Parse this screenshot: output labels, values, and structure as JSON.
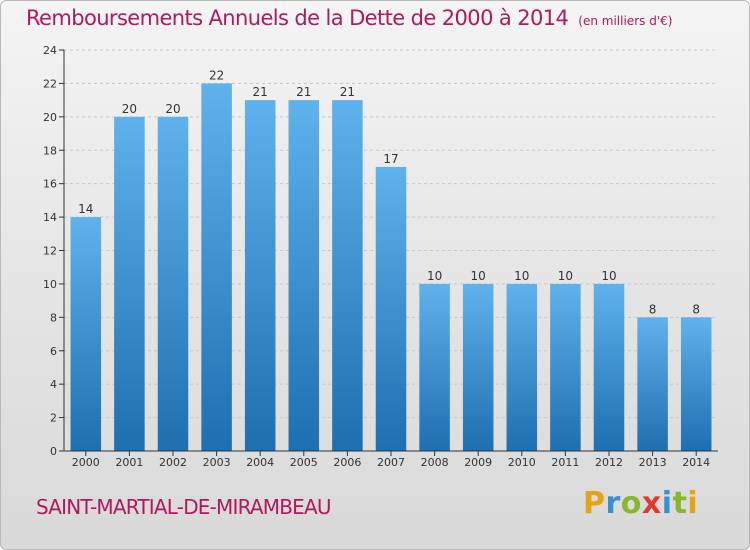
{
  "title": "Remboursements Annuels de la Dette de 2000 à 2014",
  "subtitle": "(en milliers d'€)",
  "commune": "SAINT-MARTIAL-DE-MIRAMBEAU",
  "logo": {
    "letters": [
      "P",
      "r",
      "o",
      "x",
      "i",
      "t",
      "i"
    ],
    "colors": [
      "#e6a415",
      "#3a8fd0",
      "#88b62c",
      "#e03a2f",
      "#3a8fd0",
      "#88b62c",
      "#e6a415"
    ]
  },
  "colors": {
    "accent": "#b0185f",
    "bar_top": "#5fb2ec",
    "bar_bottom": "#1d6fb0",
    "axis": "#333333",
    "grid": "#c8c8c8"
  },
  "chart_data": {
    "type": "bar",
    "categories": [
      "2000",
      "2001",
      "2002",
      "2003",
      "2004",
      "2005",
      "2006",
      "2007",
      "2008",
      "2009",
      "2010",
      "2011",
      "2012",
      "2013",
      "2014"
    ],
    "values": [
      14,
      20,
      20,
      22,
      21,
      21,
      21,
      17,
      10,
      10,
      10,
      10,
      10,
      8,
      8
    ],
    "yticks": [
      0,
      2,
      4,
      6,
      8,
      10,
      12,
      14,
      16,
      18,
      20,
      22,
      24
    ],
    "ylim": [
      0,
      24
    ],
    "grid": true,
    "legend": false
  }
}
